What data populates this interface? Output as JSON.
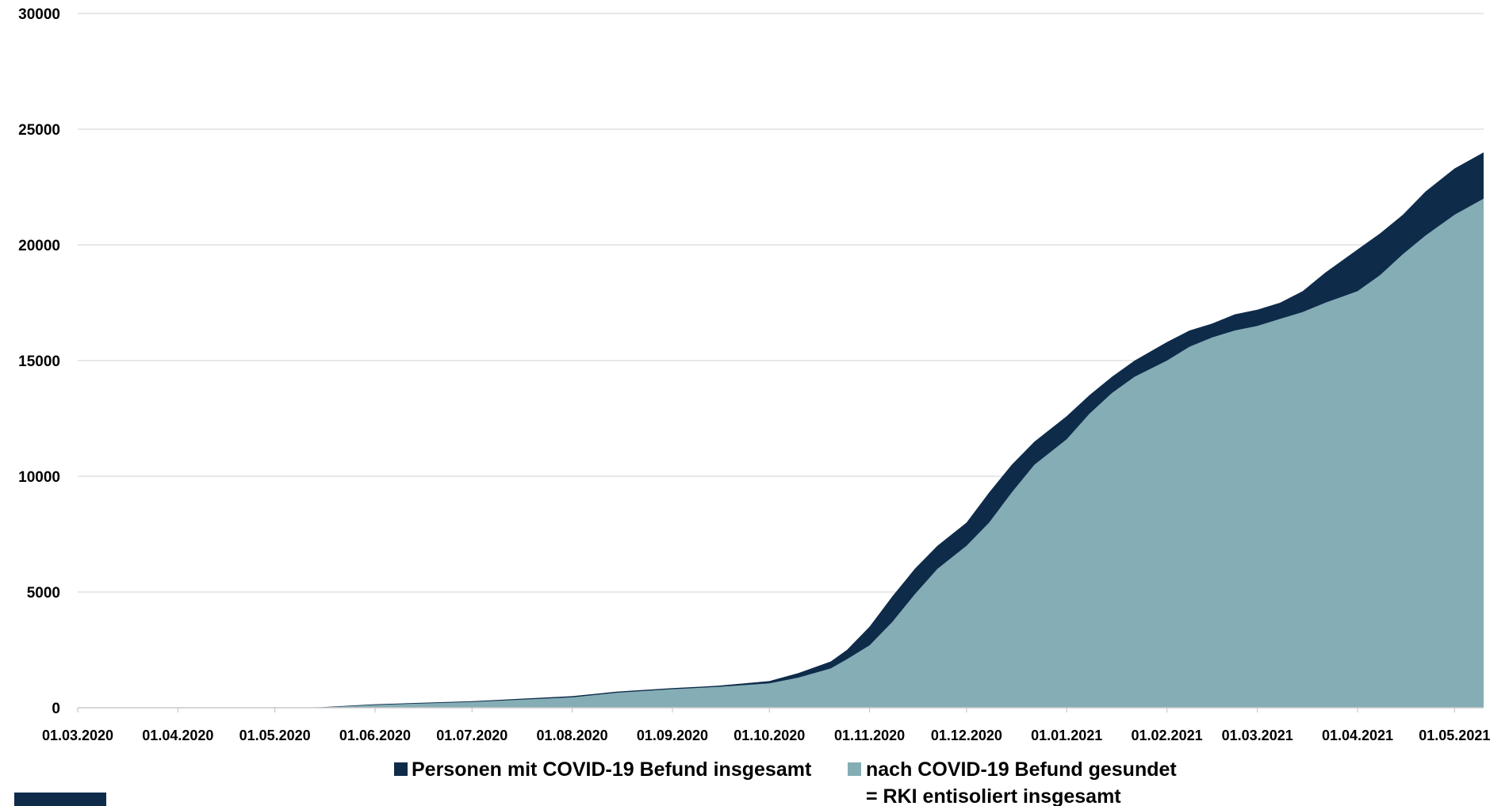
{
  "chart_data": {
    "type": "area",
    "title": "",
    "xlabel": "",
    "ylabel": "",
    "ylim": [
      0,
      30000
    ],
    "xlim": [
      "01.03.2020",
      "10.05.2021"
    ],
    "grid": true,
    "legend_position": "bottom",
    "y_ticks": [
      "0",
      "5000",
      "10000",
      "15000",
      "20000",
      "25000",
      "30000"
    ],
    "x_ticks": [
      "01.03.2020",
      "01.04.2020",
      "01.05.2020",
      "01.06.2020",
      "01.07.2020",
      "01.08.2020",
      "01.09.2020",
      "01.10.2020",
      "01.11.2020",
      "01.12.2020",
      "01.01.2021",
      "01.02.2021",
      "01.03.2021",
      "01.04.2021",
      "01.05.2021"
    ],
    "x": [
      "01.03.2020",
      "01.04.2020",
      "01.05.2020",
      "15.05.2020",
      "01.06.2020",
      "01.07.2020",
      "01.08.2020",
      "15.08.2020",
      "01.09.2020",
      "15.09.2020",
      "01.10.2020",
      "10.10.2020",
      "20.10.2020",
      "25.10.2020",
      "01.11.2020",
      "08.11.2020",
      "15.11.2020",
      "22.11.2020",
      "01.12.2020",
      "08.12.2020",
      "15.12.2020",
      "22.12.2020",
      "01.01.2021",
      "08.01.2021",
      "15.01.2021",
      "22.01.2021",
      "01.02.2021",
      "08.02.2021",
      "15.02.2021",
      "22.02.2021",
      "01.03.2021",
      "08.03.2021",
      "15.03.2021",
      "22.03.2021",
      "01.04.2021",
      "08.04.2021",
      "15.04.2021",
      "22.04.2021",
      "01.05.2021",
      "10.05.2021"
    ],
    "series": [
      {
        "name": "Personen mit COVID-19 Befund insgesamt",
        "color": "#0f2b4a",
        "values": [
          0,
          0,
          0,
          20,
          150,
          280,
          500,
          700,
          850,
          950,
          1150,
          1500,
          2000,
          2500,
          3500,
          4800,
          6000,
          7000,
          8000,
          9300,
          10500,
          11500,
          12600,
          13500,
          14300,
          15000,
          15800,
          16300,
          16600,
          17000,
          17200,
          17500,
          18000,
          18800,
          19800,
          20500,
          21300,
          22300,
          23300,
          24000
        ]
      },
      {
        "name": "nach COVID-19 Befund gesundet",
        "name_line2": "= RKI entisoliert insgesamt",
        "color": "#84adb5",
        "values": [
          0,
          0,
          0,
          10,
          120,
          250,
          450,
          650,
          800,
          900,
          1050,
          1300,
          1700,
          2100,
          2700,
          3700,
          4900,
          6000,
          7000,
          8000,
          9300,
          10500,
          11600,
          12700,
          13600,
          14300,
          15000,
          15600,
          16000,
          16300,
          16500,
          16800,
          17100,
          17500,
          18000,
          18700,
          19600,
          20400,
          21300,
          22000
        ]
      }
    ]
  }
}
